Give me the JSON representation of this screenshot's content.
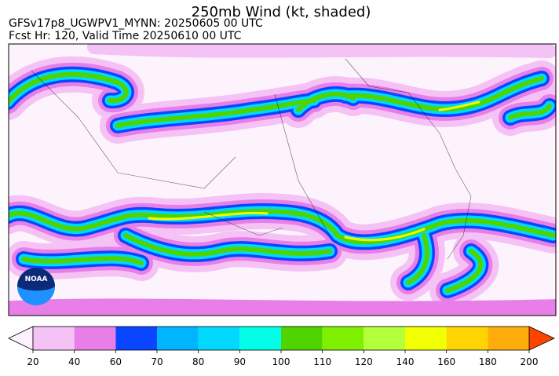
{
  "header": {
    "title": "250mb Wind (kt, shaded)",
    "run": "GFSv17p8_UGWPV1_MYNN: 20250605 00 UTC",
    "valid": "Fcst Hr: 120, Valid Time 20250610 00 UTC"
  },
  "logo": {
    "text": "NOAA"
  },
  "colorbar": {
    "ticks": [
      20,
      40,
      60,
      70,
      80,
      90,
      100,
      110,
      120,
      140,
      160,
      180,
      200
    ],
    "colors": [
      "#f5c2f5",
      "#e87fe8",
      "#0a46ff",
      "#00b4ff",
      "#00d8ff",
      "#00ffe6",
      "#4fd400",
      "#7ff000",
      "#b4ff3c",
      "#f2ff00",
      "#ffd400",
      "#ffad0a"
    ],
    "under_color": "#fff0ff",
    "over_color": "#ff4400"
  }
}
